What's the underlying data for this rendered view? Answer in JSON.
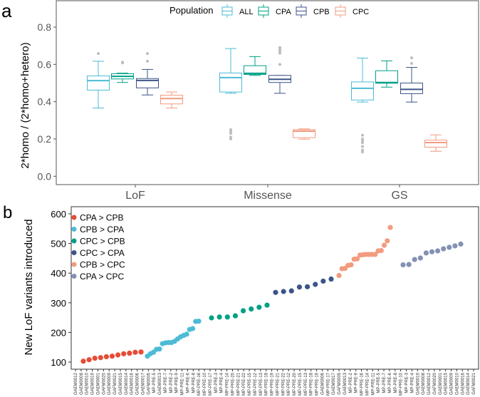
{
  "chart_data": [
    {
      "panel_label": "a",
      "type": "box",
      "ylabel": "2*homo / (2*homo+hetero)",
      "xlabel": "",
      "ylim": [
        -0.03,
        0.93
      ],
      "yticks": [
        "0.0",
        "0.2",
        "0.4",
        "0.6",
        "0.8"
      ],
      "ytick_values": [
        0,
        0.2,
        0.4,
        0.6,
        0.8
      ],
      "categories": [
        "LoF",
        "Missense",
        "GS"
      ],
      "legend": {
        "title": "Population",
        "placement": "top",
        "entries": [
          "ALL",
          "CPA",
          "CPB",
          "CPC"
        ]
      },
      "colors": {
        "ALL": "#4dbbd5",
        "CPA": "#00a087",
        "CPB": "#3c5488",
        "CPC": "#f39b7f",
        "outlier": "#bdbdbd"
      },
      "series": [
        {
          "name": "ALL",
          "boxes": [
            {
              "low": 0.366,
              "q1": 0.462,
              "median": 0.513,
              "q3": 0.538,
              "high": 0.617,
              "outliers": [
                0.658
              ]
            },
            {
              "low": 0.445,
              "q1": 0.452,
              "median": 0.529,
              "q3": 0.554,
              "high": 0.685,
              "outliers": [
                0.25,
                0.24,
                0.23,
                0.21,
                0.2
              ]
            },
            {
              "low": 0.398,
              "q1": 0.409,
              "median": 0.472,
              "q3": 0.506,
              "high": 0.634,
              "outliers": [
                0.22,
                0.2,
                0.19,
                0.18,
                0.16,
                0.14,
                0.13
              ]
            }
          ]
        },
        {
          "name": "CPA",
          "boxes": [
            {
              "low": 0.503,
              "q1": 0.522,
              "median": 0.536,
              "q3": 0.55,
              "high": 0.553,
              "outliers": [
                0.612,
                0.608
              ]
            },
            {
              "low": 0.541,
              "q1": 0.546,
              "median": 0.552,
              "q3": 0.593,
              "high": 0.642,
              "outliers": []
            },
            {
              "low": 0.478,
              "q1": 0.499,
              "median": 0.503,
              "q3": 0.566,
              "high": 0.619,
              "outliers": []
            }
          ]
        },
        {
          "name": "CPB",
          "boxes": [
            {
              "low": 0.436,
              "q1": 0.474,
              "median": 0.514,
              "q3": 0.524,
              "high": 0.573,
              "outliers": [
                0.658,
                0.617
              ]
            },
            {
              "low": 0.445,
              "q1": 0.503,
              "median": 0.52,
              "q3": 0.541,
              "high": 0.541,
              "outliers": [
                0.69,
                0.68,
                0.67,
                0.66,
                0.6
              ]
            },
            {
              "low": 0.398,
              "q1": 0.443,
              "median": 0.466,
              "q3": 0.5,
              "high": 0.584,
              "outliers": [
                0.635,
                0.605
              ]
            }
          ]
        },
        {
          "name": "CPC",
          "boxes": [
            {
              "low": 0.366,
              "q1": 0.388,
              "median": 0.417,
              "q3": 0.435,
              "high": 0.452,
              "outliers": []
            },
            {
              "low": 0.199,
              "q1": 0.207,
              "median": 0.242,
              "q3": 0.25,
              "high": 0.254,
              "outliers": []
            },
            {
              "low": 0.134,
              "q1": 0.156,
              "median": 0.181,
              "q3": 0.194,
              "high": 0.222,
              "outliers": []
            }
          ]
        }
      ]
    },
    {
      "panel_label": "b",
      "type": "scatter",
      "ylabel": "New LoF variants introduced",
      "xlabel": "",
      "ylim": [
        80,
        622
      ],
      "yticks": [
        "100",
        "200",
        "300",
        "400",
        "500",
        "600"
      ],
      "ytick_values": [
        100,
        200,
        300,
        400,
        500,
        600
      ],
      "legend": {
        "placement": "top-left"
      },
      "xtick_labels": [
        "GAEM0012",
        "GAEM0008",
        "GAEM0010",
        "GAEM0019",
        "GAEM0001",
        "GAFM0020",
        "GAEM0009",
        "GAFM0021",
        "GAEM0015",
        "GAEM0014",
        "GAEM0016",
        "GAEM0006",
        "GAEM0017",
        "GAFM0005",
        "MP-PRE-5",
        "GAEM0013",
        "MP-PRE-7",
        "MP-PRE-2",
        "MP-PRE-9",
        "MP-PRE-11",
        "MP-PRE-6",
        "MP-PRE-8",
        "MP-PRE-16",
        "MP-PRE-10",
        "MP-PRE-17",
        "MP-PRE-3",
        "MP-PRE-4",
        "MP-PRE-14",
        "MP-PRE-20",
        "MP-PRE-21",
        "MP-PRE-22",
        "MP-PRE-15",
        "MP-PRE-12",
        "MP-PRE-13",
        "MP-PRE-18",
        "MP-PRE-19",
        "MP-PRE-21",
        "MP-PRE-22",
        "MP-PRE-12",
        "MP-PRE-20",
        "MP-PRE-15",
        "MP-PRE-13",
        "MP-PRE-18",
        "MP-PRE-19",
        "GAEM0006",
        "MP-PRE-17",
        "GAEM0017",
        "GAFM0005",
        "GAEM0013",
        "MP-PRE-2",
        "MP-PRE-9",
        "MP-PRE-16",
        "MP-PRE-14",
        "MP-PRE-11",
        "MP-PRE-5",
        "MP-PRE-7",
        "MP-PRE-6",
        "MP-PRE-8",
        "MP-PRE-10",
        "MP-PRE-3",
        "MP-PRE-4",
        "GAEM0019",
        "GAEM0008",
        "GAEM0012",
        "GAFM0020",
        "GAEM0001",
        "GAEM0015",
        "GAEM0009",
        "GAEM0010",
        "GAEM0016",
        "GAEM0014",
        "GAFM0021"
      ],
      "series": [
        {
          "name": "CPA > CPB",
          "color": "#e64b35",
          "values": [
            103,
            108,
            113,
            115,
            118,
            120,
            124,
            128,
            130,
            133,
            134
          ]
        },
        {
          "name": "CPB > CPA",
          "color": "#4dbbd5",
          "values": [
            120,
            128,
            133,
            143,
            144,
            162,
            165,
            166,
            166,
            170,
            178,
            185,
            190,
            194,
            210,
            213,
            237,
            238
          ]
        },
        {
          "name": "CPC > CPB",
          "color": "#00a087",
          "values": [
            249,
            252,
            252,
            256,
            273,
            279,
            285,
            292
          ]
        },
        {
          "name": "CPC > CPA",
          "color": "#3c5488",
          "values": [
            335,
            338,
            340,
            353,
            354,
            362,
            373,
            380
          ]
        },
        {
          "name": "CPB > CPC",
          "color": "#f39b7f",
          "values": [
            392,
            415,
            416,
            426,
            428,
            447,
            448,
            461,
            462,
            463,
            463,
            463,
            463,
            475,
            476,
            494,
            509,
            554
          ]
        },
        {
          "name": "CPA > CPC",
          "color": "#8491b4",
          "values": [
            428,
            429,
            446,
            451,
            468,
            472,
            475,
            482,
            487,
            492,
            498
          ]
        }
      ]
    }
  ]
}
